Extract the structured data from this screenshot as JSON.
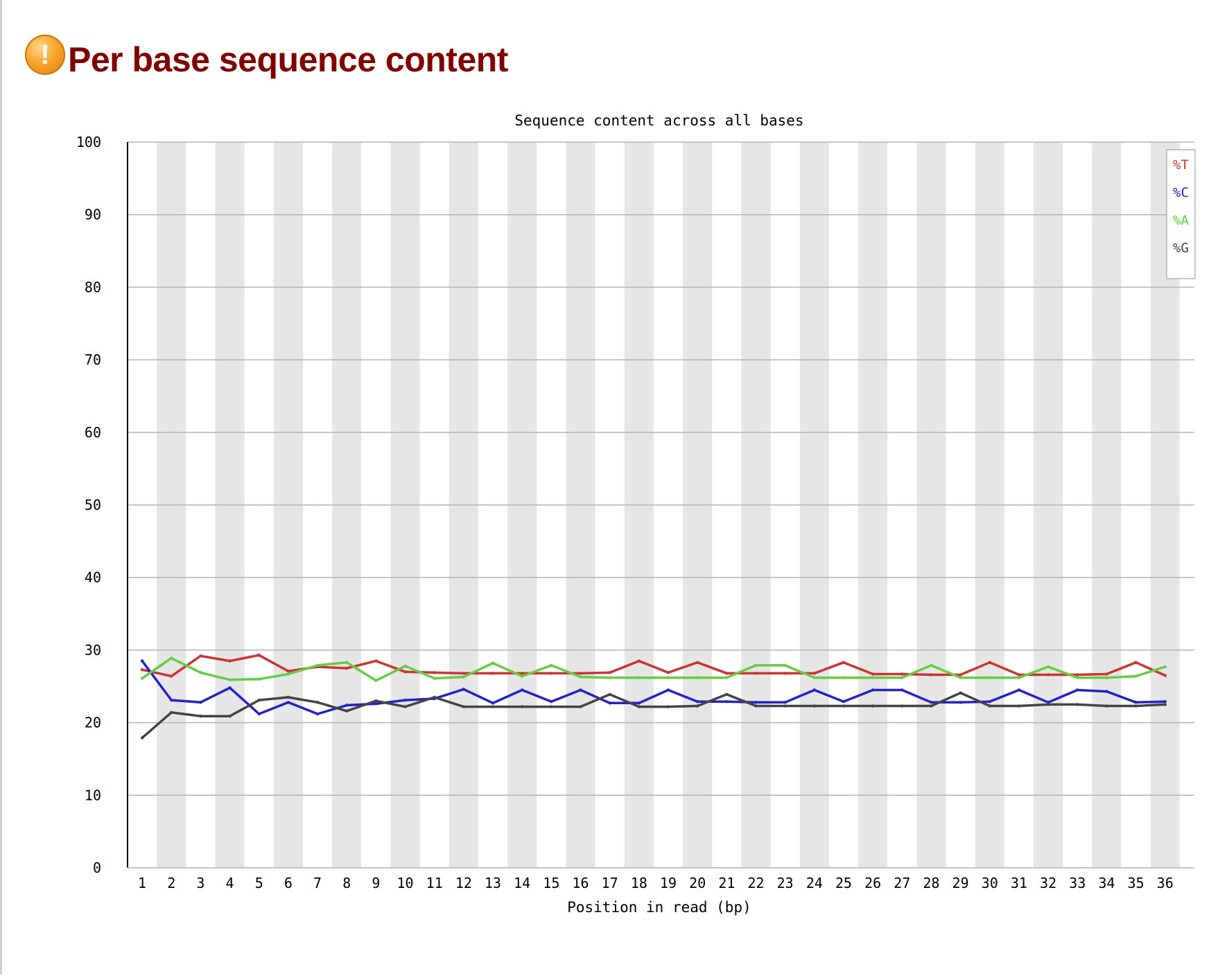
{
  "header": {
    "icon": "warning-icon",
    "icon_color": "#f59a23",
    "title": "Per base sequence content",
    "title_color": "#800000"
  },
  "chart_data": {
    "type": "line",
    "title": "Sequence content across all bases",
    "xlabel": "Position in read (bp)",
    "ylabel": "",
    "ylim": [
      0,
      100
    ],
    "yticks": [
      0,
      10,
      20,
      30,
      40,
      50,
      60,
      70,
      80,
      90,
      100
    ],
    "grid": true,
    "alternating_column_shading": true,
    "legend_position": "top-right",
    "categories": [
      "1",
      "2",
      "3",
      "4",
      "5",
      "6",
      "7",
      "8",
      "9",
      "10",
      "11",
      "12",
      "13",
      "14",
      "15",
      "16",
      "17",
      "18",
      "19",
      "20",
      "21",
      "22",
      "23",
      "24",
      "25",
      "26",
      "27",
      "28",
      "29",
      "30",
      "31",
      "32",
      "33",
      "34",
      "35",
      "36"
    ],
    "series": [
      {
        "name": "%T",
        "color": "#cc3333",
        "values": [
          27.3,
          26.4,
          29.2,
          28.5,
          29.3,
          27.1,
          27.7,
          27.5,
          28.5,
          27.0,
          26.9,
          26.8,
          26.8,
          26.8,
          26.8,
          26.8,
          26.9,
          28.5,
          26.9,
          28.3,
          26.8,
          26.8,
          26.8,
          26.8,
          28.3,
          26.7,
          26.7,
          26.6,
          26.6,
          28.3,
          26.6,
          26.6,
          26.6,
          26.7,
          28.3,
          26.5
        ]
      },
      {
        "name": "%C",
        "color": "#2222cc",
        "values": [
          28.5,
          23.1,
          22.8,
          24.8,
          21.2,
          22.8,
          21.2,
          22.4,
          22.6,
          23.1,
          23.3,
          24.6,
          22.7,
          24.5,
          22.9,
          24.5,
          22.7,
          22.7,
          24.5,
          22.9,
          22.9,
          22.8,
          22.8,
          24.5,
          22.9,
          24.5,
          24.5,
          22.8,
          22.8,
          22.9,
          24.5,
          22.8,
          24.5,
          24.3,
          22.8,
          22.9
        ]
      },
      {
        "name": "%A",
        "color": "#66cc44",
        "values": [
          26.1,
          28.9,
          26.9,
          25.9,
          26.0,
          26.7,
          27.9,
          28.3,
          25.8,
          27.8,
          26.1,
          26.3,
          28.2,
          26.4,
          27.9,
          26.3,
          26.2,
          26.2,
          26.2,
          26.2,
          26.2,
          27.9,
          27.9,
          26.2,
          26.2,
          26.2,
          26.2,
          27.9,
          26.2,
          26.2,
          26.2,
          27.7,
          26.2,
          26.2,
          26.4,
          27.7
        ]
      },
      {
        "name": "%G",
        "color": "#444444",
        "values": [
          17.9,
          21.4,
          20.9,
          20.9,
          23.1,
          23.5,
          22.8,
          21.6,
          23.0,
          22.2,
          23.5,
          22.2,
          22.2,
          22.2,
          22.2,
          22.2,
          23.9,
          22.2,
          22.2,
          22.3,
          23.9,
          22.3,
          22.3,
          22.3,
          22.3,
          22.3,
          22.3,
          22.3,
          24.1,
          22.3,
          22.3,
          22.5,
          22.5,
          22.3,
          22.3,
          22.5
        ]
      }
    ]
  }
}
